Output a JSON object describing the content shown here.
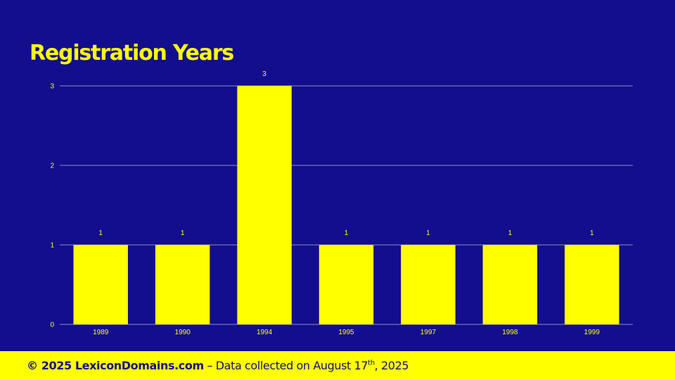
{
  "colors": {
    "background": "#120e8e",
    "accent": "#ffff00",
    "grid": "#8f8cc9"
  },
  "title": "Registration Years",
  "chart_data": {
    "type": "bar",
    "title": "Registration Years",
    "categories": [
      "1989",
      "1990",
      "1994",
      "1995",
      "1997",
      "1998",
      "1999"
    ],
    "values": [
      1,
      1,
      3,
      1,
      1,
      1,
      1
    ],
    "ylim": [
      0,
      3
    ],
    "yticks": [
      0,
      1,
      2,
      3
    ],
    "data_labels": true,
    "grid": true
  },
  "footer": {
    "copyright": "© 2025 LexiconDomains.com",
    "separator": " – ",
    "text": "Data collected on August 17",
    "ordinal_suffix": "th",
    "year": ", 2025"
  }
}
